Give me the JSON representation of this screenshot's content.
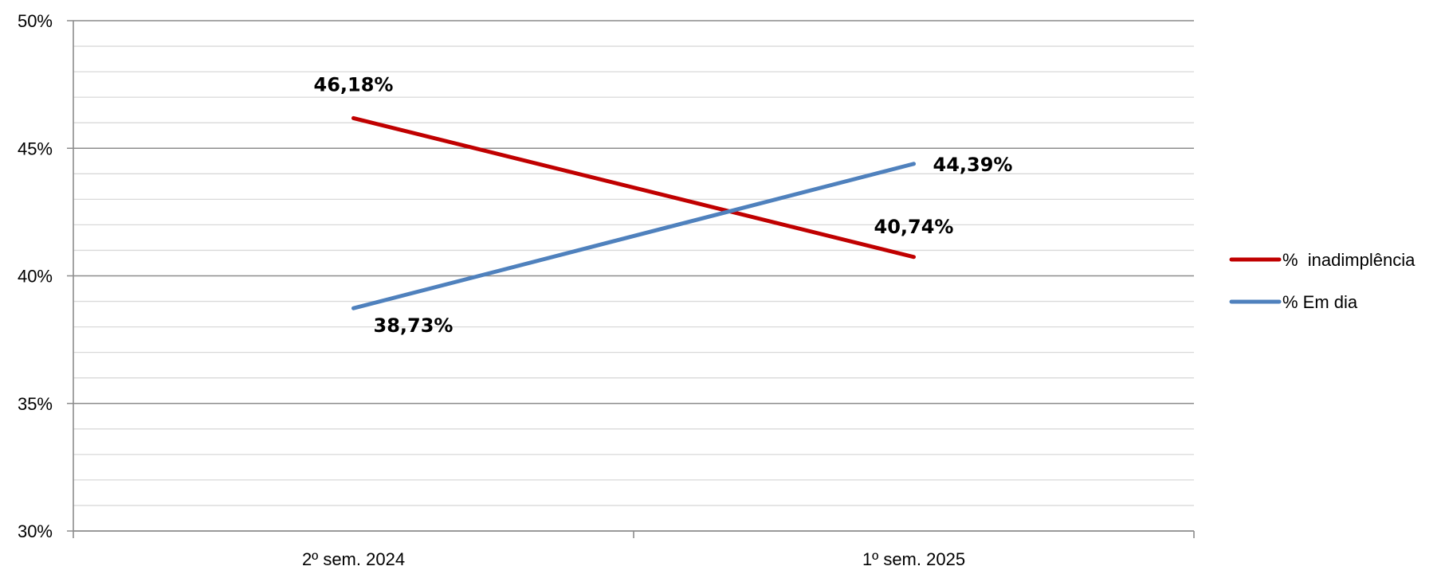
{
  "colors": {
    "background": "#ffffff",
    "major_grid": "#8c8c8c",
    "minor_grid": "#d9d9d9",
    "axis": "#8c8c8c"
  },
  "chart_data": {
    "type": "line",
    "categories": [
      "2º sem. 2024",
      "1º sem. 2025"
    ],
    "series": [
      {
        "name": "%  inadimplência",
        "values": [
          46.18,
          40.74
        ],
        "labels": [
          "46,18%",
          "40,74%"
        ],
        "color": "#c00000"
      },
      {
        "name": "% Em dia",
        "values": [
          38.73,
          44.39
        ],
        "labels": [
          "38,73%",
          "44,39%"
        ],
        "color": "#4f81bd"
      }
    ],
    "ylim": [
      30,
      50
    ],
    "y_ticks": [
      30,
      35,
      40,
      45,
      50
    ],
    "y_tick_labels": [
      "30%",
      "35%",
      "40%",
      "45%",
      "50%"
    ],
    "y_minor_step": 1,
    "grid": true,
    "legend_position": "right"
  }
}
